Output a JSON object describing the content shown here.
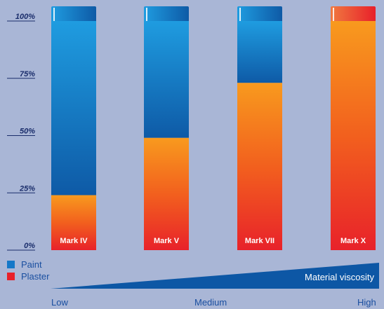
{
  "chart_data": {
    "type": "bar",
    "stacked": true,
    "categories": [
      "Mark IV",
      "Mark V",
      "Mark VII",
      "Mark X"
    ],
    "series": [
      {
        "name": "Plaster",
        "values": [
          24,
          49,
          73,
          100
        ]
      },
      {
        "name": "Paint",
        "values": [
          76,
          51,
          27,
          0
        ]
      }
    ],
    "ylim": [
      0,
      100
    ],
    "yticks": [
      "0%",
      "25%",
      "50%",
      "75%",
      "100%"
    ],
    "legend": [
      "Paint",
      "Plaster"
    ],
    "colors": {
      "Paint": "#1478c8",
      "Plaster": "#e8202a"
    },
    "viscosity": {
      "label": "Material viscosity",
      "scale": [
        "Low",
        "Medium",
        "High"
      ]
    }
  }
}
